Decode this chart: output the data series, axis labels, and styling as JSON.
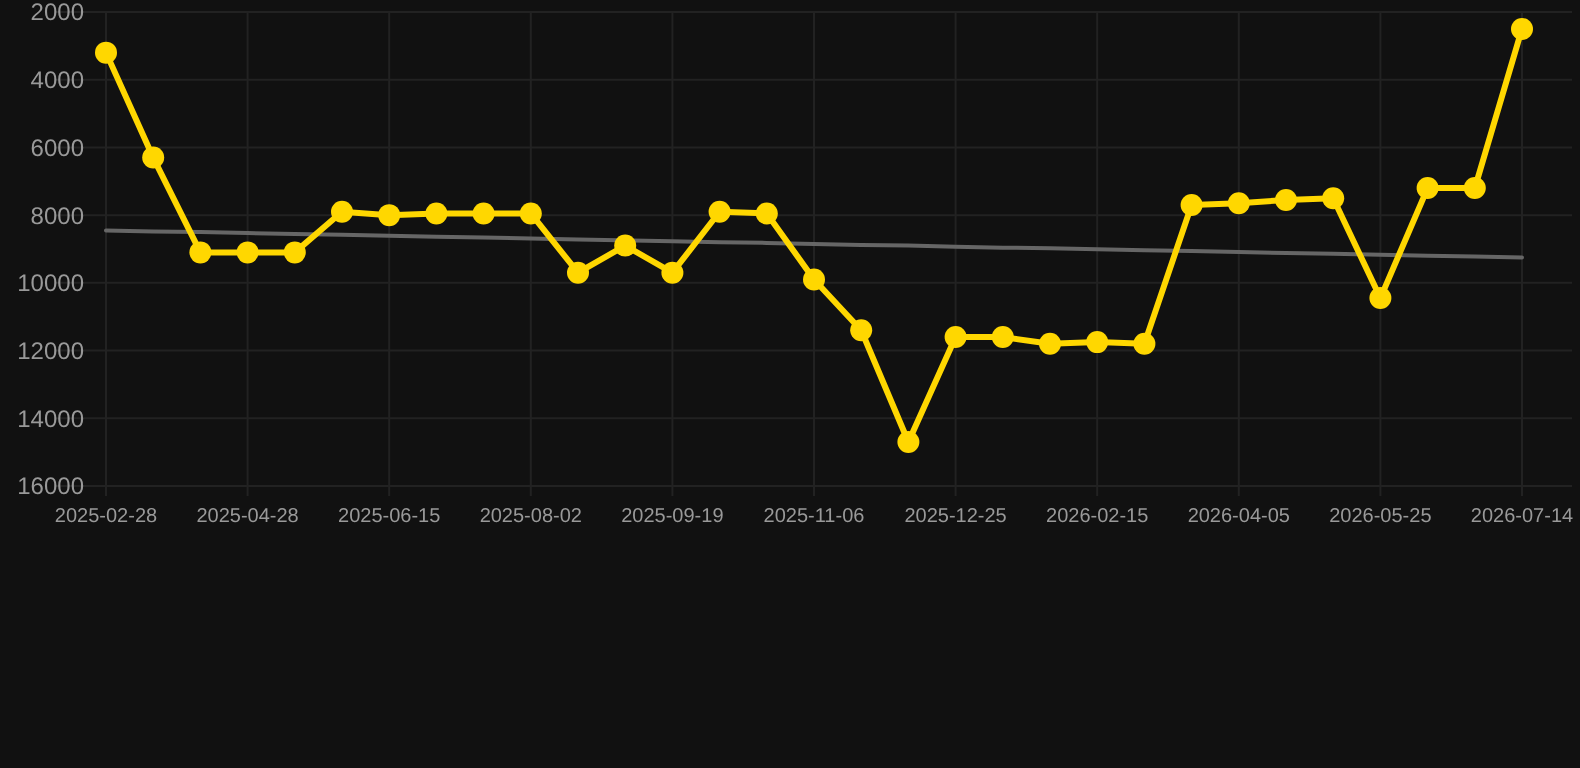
{
  "chart_data": {
    "type": "line",
    "categories": [
      "2025-02-28",
      null,
      null,
      "2025-04-28",
      null,
      null,
      "2025-06-15",
      null,
      null,
      "2025-08-02",
      null,
      null,
      "2025-09-19",
      null,
      null,
      "2025-11-06",
      null,
      null,
      "2025-12-25",
      null,
      null,
      "2026-02-15",
      null,
      null,
      "2026-04-05",
      null,
      null,
      "2026-05-25",
      null,
      null,
      "2026-07-14"
    ],
    "series": [
      {
        "color": "#ffd700",
        "marker": "circle",
        "values": [
          3200,
          6300,
          9100,
          9100,
          9100,
          7900,
          8000,
          7950,
          7950,
          7950,
          9700,
          8900,
          9700,
          7900,
          7950,
          9900,
          11400,
          14700,
          11600,
          11600,
          11800,
          11750,
          11800,
          7700,
          7650,
          7550,
          7500,
          10450,
          7200,
          7200,
          2500
        ]
      },
      {
        "type": "line",
        "color": "#666666",
        "marker": "none",
        "values": [
          8450,
          8480,
          8500,
          8530,
          8560,
          8580,
          8610,
          8640,
          8660,
          8690,
          8720,
          null,
          8770,
          8800,
          8820,
          8850,
          8880,
          8900,
          8930,
          8960,
          8980,
          9010,
          9040,
          9060,
          9090,
          9120,
          9140,
          9170,
          9200,
          9220,
          9250
        ]
      }
    ],
    "ylim": [
      16000,
      2000
    ],
    "yticks": [
      2000,
      4000,
      6000,
      8000,
      10000,
      12000,
      14000,
      16000
    ],
    "grid": true
  }
}
